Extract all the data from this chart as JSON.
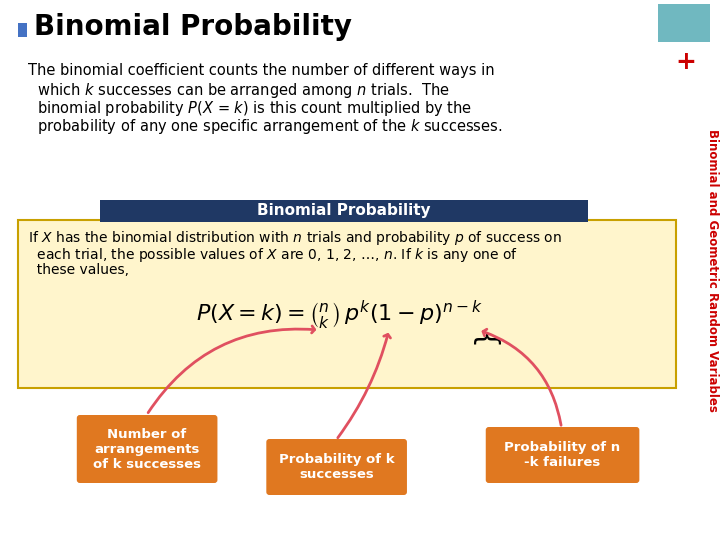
{
  "title": "Binomial Probability",
  "title_bullet_color": "#4472C4",
  "title_fontsize": 20,
  "bg_color": "#FFFFFF",
  "intro_text": "The binomial coefficient counts the number of different ways in\n  which k successes can be arranged among n trials.  The\n  binomial probability P(X = k) is this count multiplied by the\n  probability of any one specific arrangement of the k successes.",
  "box_header_text": "Binomial Probability",
  "box_header_bg": "#1F3864",
  "box_header_color": "#FFFFFF",
  "box_bg": "#FFF5CC",
  "box_border_color": "#C8A000",
  "box_text": "If X has the binomial distribution with n trials and probability p of success on\n  each trial, the possible values of X are 0, 1, 2, …, n. If k is any one of\n  these values,",
  "orange_box_color": "#E07820",
  "orange_box_text_color": "#FFFFFF",
  "label1": "Number of\narrangements\nof k successes",
  "label2": "Probability of k\nsuccesses",
  "label3": "Probability of n\n-k failures",
  "sidebar_text": "Binomial and Geometric Random Variables",
  "sidebar_color": "#CC0000",
  "teal_box_color": "#70B8C0",
  "plus_color": "#CC0000"
}
